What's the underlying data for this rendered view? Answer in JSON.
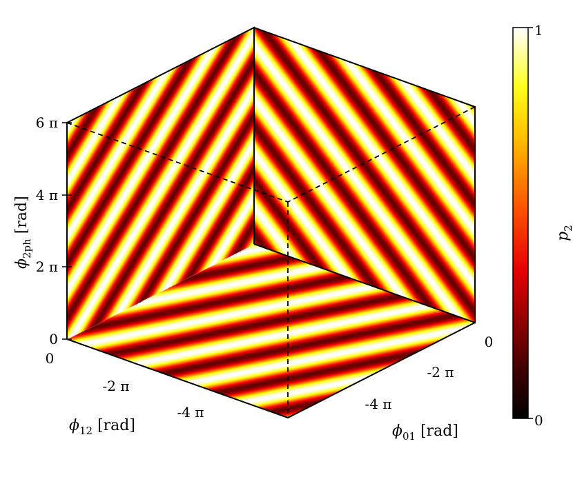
{
  "chart_data": {
    "type": "heatmap",
    "subtype": "3d-cube-faces",
    "title": "",
    "axes": {
      "x": {
        "label": "ϕ01  [rad]",
        "ticks": [
          {
            "value": 0,
            "label": "0"
          },
          {
            "value": -6.283,
            "label": "-2 π"
          },
          {
            "value": -12.566,
            "label": "-4 π"
          }
        ],
        "range": [
          -18.85,
          0
        ]
      },
      "y": {
        "label": "ϕ12  [rad]",
        "ticks": [
          {
            "value": 0,
            "label": "0"
          },
          {
            "value": -6.283,
            "label": "-2 π"
          },
          {
            "value": -12.566,
            "label": "-4 π"
          }
        ],
        "range": [
          -18.85,
          0
        ]
      },
      "z": {
        "label": "ϕ2ph  [rad]",
        "ticks": [
          {
            "value": 0,
            "label": "0"
          },
          {
            "value": 6.283,
            "label": "2 π"
          },
          {
            "value": 12.566,
            "label": "4 π"
          },
          {
            "value": 18.85,
            "label": "6 π"
          }
        ],
        "range": [
          0,
          18.85
        ]
      }
    },
    "colorbar": {
      "label": "p2",
      "min": 0,
      "max": 1,
      "min_label": "0",
      "max_label": "1",
      "colormap": "hot"
    },
    "faces": [
      {
        "name": "bottom",
        "function": "p2 = cos^2((ϕ01 + 2·ϕ12)/2)",
        "stripe_count": 12
      },
      {
        "name": "left-wall",
        "function": "p2 = cos^2((ϕ12 + ϕ2ph)/2)",
        "stripe_count": 16
      },
      {
        "name": "right-wall",
        "function": "p2 = cos^2((ϕ01 - ϕ2ph)/2)",
        "stripe_count": 16
      }
    ],
    "colors": {
      "dark": "#3a0000",
      "mid": "#d21e00",
      "bright": "#ffff80",
      "white": "#ffffff",
      "black": "#000000"
    }
  },
  "labels": {
    "xlabel_main": "ϕ",
    "xlabel_sub": "01",
    "xlabel_unit": " [rad]",
    "ylabel_main": "ϕ",
    "ylabel_sub": "12",
    "ylabel_unit": " [rad]",
    "zlabel_main": "ϕ",
    "zlabel_sub": "2ph",
    "zlabel_unit": " [rad]",
    "cb_main": "p",
    "cb_sub": "2"
  }
}
